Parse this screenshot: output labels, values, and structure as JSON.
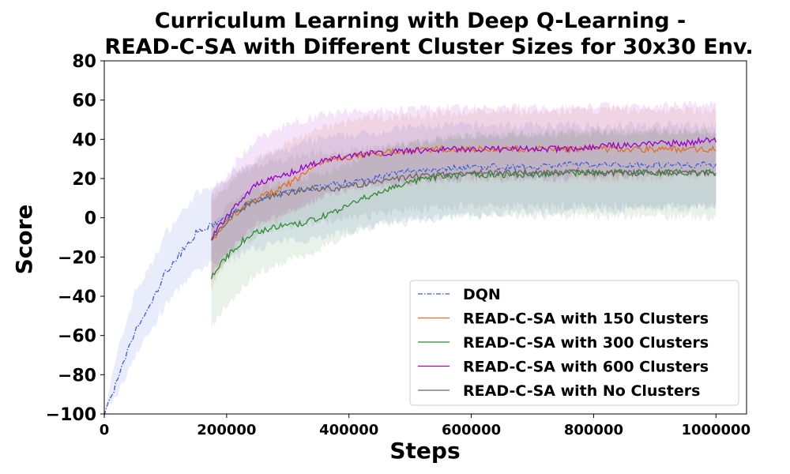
{
  "chart_data": {
    "type": "line",
    "title_lines": [
      "Curriculum Learning with Deep Q-Learning -",
      "READ-C-SA with Different Cluster Sizes for 30x30 Env."
    ],
    "xlabel": "Steps",
    "ylabel": "Score",
    "xlim": [
      0,
      1050000
    ],
    "ylim": [
      -100,
      80
    ],
    "xticks": [
      0,
      200000,
      400000,
      600000,
      800000,
      1000000
    ],
    "xtick_labels": [
      "0",
      "200000",
      "400000",
      "600000",
      "800000",
      "1000000"
    ],
    "yticks": [
      -100,
      -80,
      -60,
      -40,
      -20,
      0,
      20,
      40,
      60,
      80
    ],
    "ytick_labels": [
      "−100",
      "−80",
      "−60",
      "−40",
      "−20",
      "0",
      "20",
      "40",
      "60",
      "80"
    ],
    "grid": false,
    "legend_position": "lower-right",
    "series": [
      {
        "name": "DQN",
        "color": "#3b5bdb",
        "dash": "dashdot",
        "x": [
          0,
          25000,
          50000,
          75000,
          100000,
          125000,
          150000,
          175000,
          200000,
          225000,
          250000,
          300000,
          350000,
          400000,
          450000,
          500000,
          550000,
          600000,
          650000,
          700000,
          750000,
          800000,
          850000,
          900000,
          950000,
          1000000
        ],
        "y": [
          -100,
          -80,
          -58,
          -45,
          -28,
          -18,
          -8,
          -4,
          0,
          5,
          10,
          13,
          16,
          18,
          21,
          24,
          25,
          26,
          26,
          26,
          27,
          27,
          27,
          27,
          27,
          27
        ],
        "lower": [
          -100,
          -88,
          -70,
          -58,
          -45,
          -35,
          -28,
          -24,
          -22,
          -18,
          -15,
          -12,
          -10,
          -7,
          -4,
          -2,
          0,
          1,
          2,
          3,
          3,
          4,
          4,
          5,
          5,
          6
        ],
        "upper": [
          -98,
          -65,
          -38,
          -25,
          -8,
          2,
          12,
          15,
          20,
          26,
          30,
          35,
          40,
          42,
          44,
          46,
          47,
          47,
          47,
          47,
          47,
          47,
          47,
          47,
          47,
          47
        ]
      },
      {
        "name": "READ-C-SA with 150 Clusters",
        "color": "#e07020",
        "dash": "solid",
        "x": [
          175000,
          200000,
          225000,
          250000,
          275000,
          300000,
          325000,
          350000,
          375000,
          400000,
          450000,
          500000,
          550000,
          600000,
          650000,
          700000,
          750000,
          800000,
          850000,
          900000,
          950000,
          1000000
        ],
        "y": [
          -12,
          -2,
          5,
          10,
          13,
          17,
          22,
          28,
          30,
          31,
          33,
          34,
          35,
          35,
          35,
          35,
          35,
          35,
          35,
          35,
          35,
          35
        ],
        "lower": [
          -35,
          -22,
          -10,
          -5,
          -2,
          2,
          6,
          10,
          13,
          15,
          17,
          18,
          19,
          20,
          20,
          20,
          20,
          20,
          20,
          20,
          21,
          21
        ],
        "upper": [
          10,
          18,
          24,
          30,
          34,
          38,
          42,
          45,
          47,
          49,
          51,
          52,
          53,
          54,
          54,
          54,
          54,
          55,
          55,
          55,
          55,
          55
        ]
      },
      {
        "name": "READ-C-SA with 300 Clusters",
        "color": "#2e8b2e",
        "dash": "solid",
        "x": [
          175000,
          200000,
          225000,
          250000,
          275000,
          300000,
          325000,
          350000,
          375000,
          400000,
          425000,
          450000,
          475000,
          500000,
          550000,
          600000,
          650000,
          700000,
          750000,
          800000,
          850000,
          900000,
          950000,
          1000000
        ],
        "y": [
          -30,
          -20,
          -12,
          -7,
          -5,
          -4,
          -3,
          0,
          3,
          6,
          10,
          13,
          16,
          18,
          21,
          22,
          22,
          22,
          23,
          23,
          23,
          23,
          23,
          23
        ],
        "lower": [
          -55,
          -45,
          -35,
          -28,
          -25,
          -22,
          -20,
          -16,
          -12,
          -8,
          -5,
          -3,
          -2,
          -1,
          0,
          1,
          1,
          1,
          1,
          1,
          1,
          1,
          1,
          0
        ],
        "upper": [
          -5,
          5,
          12,
          15,
          17,
          18,
          20,
          22,
          25,
          28,
          32,
          35,
          37,
          38,
          40,
          42,
          43,
          43,
          44,
          44,
          44,
          44,
          44,
          44
        ]
      },
      {
        "name": "READ-C-SA with 600 Clusters",
        "color": "#9900cc",
        "dash": "solid",
        "x": [
          175000,
          200000,
          225000,
          250000,
          275000,
          300000,
          325000,
          350000,
          375000,
          400000,
          450000,
          500000,
          550000,
          600000,
          650000,
          700000,
          750000,
          800000,
          850000,
          900000,
          950000,
          1000000
        ],
        "y": [
          -10,
          0,
          10,
          17,
          20,
          22,
          26,
          28,
          30,
          32,
          33,
          34,
          35,
          35,
          35,
          35,
          35,
          36,
          37,
          38,
          38,
          40
        ],
        "lower": [
          -30,
          -18,
          -10,
          -3,
          0,
          3,
          6,
          10,
          13,
          15,
          17,
          18,
          19,
          20,
          20,
          20,
          20,
          21,
          21,
          22,
          22,
          23
        ],
        "upper": [
          12,
          22,
          32,
          40,
          44,
          47,
          50,
          52,
          53,
          54,
          55,
          55,
          56,
          56,
          56,
          56,
          56,
          57,
          57,
          57,
          58,
          58
        ]
      },
      {
        "name": "READ-C-SA with No Clusters",
        "color": "#666666",
        "dash": "solid",
        "x": [
          175000,
          200000,
          225000,
          250000,
          275000,
          300000,
          325000,
          350000,
          375000,
          400000,
          450000,
          500000,
          550000,
          600000,
          650000,
          700000,
          750000,
          800000,
          850000,
          900000,
          950000,
          1000000
        ],
        "y": [
          -10,
          -2,
          5,
          8,
          11,
          13,
          14,
          15,
          15,
          16,
          18,
          21,
          22,
          23,
          23,
          23,
          23,
          23,
          23,
          23,
          23,
          23
        ],
        "lower": [
          -32,
          -22,
          -14,
          -9,
          -6,
          -4,
          -3,
          -2,
          -1,
          0,
          2,
          4,
          5,
          6,
          6,
          6,
          6,
          6,
          6,
          6,
          6,
          6
        ],
        "upper": [
          10,
          16,
          24,
          26,
          28,
          30,
          32,
          33,
          34,
          35,
          36,
          38,
          40,
          41,
          42,
          42,
          43,
          43,
          43,
          44,
          44,
          44
        ]
      }
    ]
  }
}
